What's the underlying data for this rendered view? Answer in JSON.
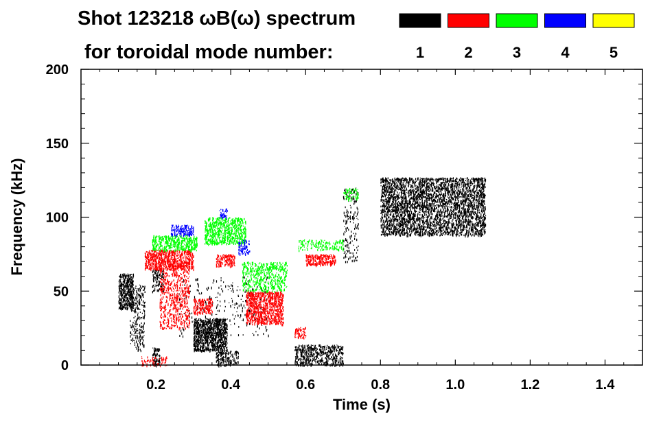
{
  "chart_data": {
    "type": "heatmap",
    "title_line1": "Shot 123218 ωB(ω) spectrum",
    "title_line2": "for toroidal mode number:",
    "xlabel": "Time (s)",
    "ylabel": "Frequency (kHz)",
    "xlim": [
      0.0,
      1.5
    ],
    "ylim": [
      0,
      200
    ],
    "xticks": [
      0.2,
      0.4,
      0.6,
      0.8,
      1.0,
      1.2,
      1.4
    ],
    "xtick_labels": [
      "0.2",
      "0.4",
      "0.6",
      "0.8",
      "1.0",
      "1.2",
      "1.4"
    ],
    "yticks": [
      0,
      50,
      100,
      150,
      200
    ],
    "ytick_labels": [
      "0",
      "50",
      "100",
      "150",
      "200"
    ],
    "legend": [
      {
        "mode": "1",
        "color": "#000000"
      },
      {
        "mode": "2",
        "color": "#ff0000"
      },
      {
        "mode": "3",
        "color": "#00ff00"
      },
      {
        "mode": "4",
        "color": "#0000ff"
      },
      {
        "mode": "5",
        "color": "#ffff00"
      }
    ],
    "regions": [
      {
        "mode": 1,
        "t0": 0.1,
        "t1": 0.14,
        "f0": 38,
        "f1": 62,
        "density": 0.75
      },
      {
        "mode": 1,
        "t0": 0.13,
        "t1": 0.17,
        "f0": 10,
        "f1": 55,
        "density": 0.25
      },
      {
        "mode": 1,
        "t0": 0.19,
        "t1": 0.22,
        "f0": 50,
        "f1": 65,
        "density": 0.45
      },
      {
        "mode": 1,
        "t0": 0.19,
        "t1": 0.21,
        "f0": 0,
        "f1": 12,
        "density": 0.5
      },
      {
        "mode": 1,
        "t0": 0.3,
        "t1": 0.39,
        "f0": 10,
        "f1": 32,
        "density": 0.85
      },
      {
        "mode": 1,
        "t0": 0.36,
        "t1": 0.42,
        "f0": 0,
        "f1": 10,
        "density": 0.5
      },
      {
        "mode": 1,
        "t0": 0.57,
        "t1": 0.7,
        "f0": 0,
        "f1": 14,
        "density": 0.5
      },
      {
        "mode": 1,
        "t0": 0.26,
        "t1": 0.5,
        "f0": 20,
        "f1": 60,
        "density": 0.05
      },
      {
        "mode": 1,
        "t0": 0.7,
        "t1": 0.74,
        "f0": 70,
        "f1": 120,
        "density": 0.15
      },
      {
        "mode": 1,
        "t0": 0.8,
        "t1": 1.08,
        "f0": 88,
        "f1": 127,
        "density": 0.55
      },
      {
        "mode": 2,
        "t0": 0.17,
        "t1": 0.3,
        "f0": 65,
        "f1": 78,
        "density": 0.7
      },
      {
        "mode": 2,
        "t0": 0.21,
        "t1": 0.29,
        "f0": 25,
        "f1": 70,
        "density": 0.3
      },
      {
        "mode": 2,
        "t0": 0.3,
        "t1": 0.35,
        "f0": 35,
        "f1": 45,
        "density": 0.6
      },
      {
        "mode": 2,
        "t0": 0.36,
        "t1": 0.41,
        "f0": 67,
        "f1": 75,
        "density": 0.6
      },
      {
        "mode": 2,
        "t0": 0.44,
        "t1": 0.54,
        "f0": 28,
        "f1": 50,
        "density": 0.7
      },
      {
        "mode": 2,
        "t0": 0.6,
        "t1": 0.68,
        "f0": 68,
        "f1": 75,
        "density": 0.75
      },
      {
        "mode": 2,
        "t0": 0.57,
        "t1": 0.6,
        "f0": 18,
        "f1": 26,
        "density": 0.5
      },
      {
        "mode": 2,
        "t0": 0.16,
        "t1": 0.23,
        "f0": 0,
        "f1": 6,
        "density": 0.3
      },
      {
        "mode": 3,
        "t0": 0.19,
        "t1": 0.31,
        "f0": 78,
        "f1": 88,
        "density": 0.6
      },
      {
        "mode": 3,
        "t0": 0.33,
        "t1": 0.44,
        "f0": 82,
        "f1": 100,
        "density": 0.6
      },
      {
        "mode": 3,
        "t0": 0.43,
        "t1": 0.55,
        "f0": 50,
        "f1": 70,
        "density": 0.35
      },
      {
        "mode": 3,
        "t0": 0.58,
        "t1": 0.7,
        "f0": 78,
        "f1": 85,
        "density": 0.3
      },
      {
        "mode": 3,
        "t0": 0.7,
        "t1": 0.74,
        "f0": 112,
        "f1": 120,
        "density": 0.3
      },
      {
        "mode": 4,
        "t0": 0.24,
        "t1": 0.3,
        "f0": 88,
        "f1": 95,
        "density": 0.6
      },
      {
        "mode": 4,
        "t0": 0.37,
        "t1": 0.39,
        "f0": 100,
        "f1": 106,
        "density": 0.6
      },
      {
        "mode": 4,
        "t0": 0.42,
        "t1": 0.45,
        "f0": 75,
        "f1": 85,
        "density": 0.4
      }
    ]
  }
}
